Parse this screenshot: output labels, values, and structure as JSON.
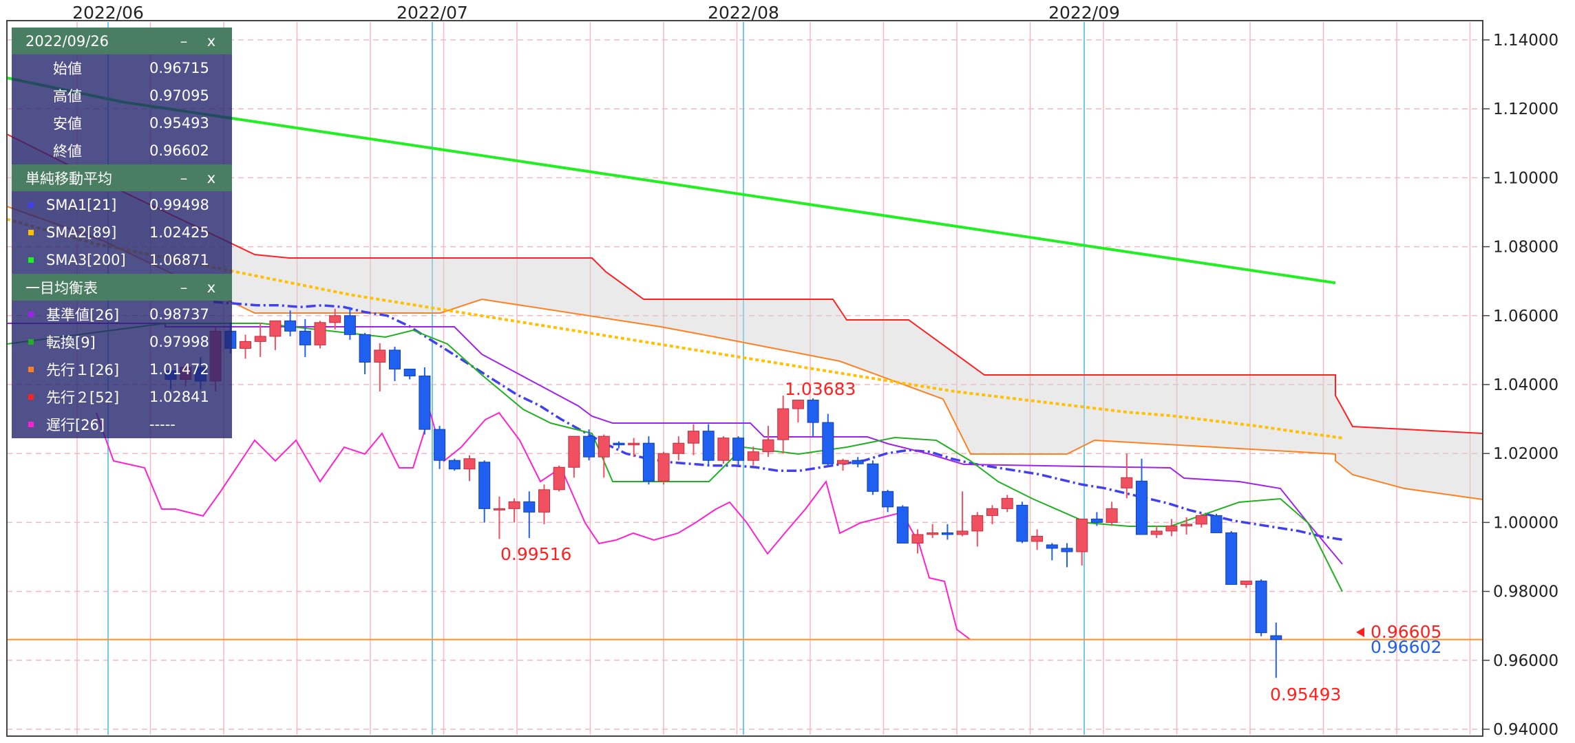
{
  "price_axis": {
    "ticks": [
      "1.14000",
      "1.12000",
      "1.10000",
      "1.08000",
      "1.06000",
      "1.04000",
      "1.02000",
      "1.00000",
      "0.98000",
      "0.96000",
      "0.94000"
    ],
    "tick_values": [
      1.14,
      1.12,
      1.1,
      1.08,
      1.06,
      1.04,
      1.02,
      1.0,
      0.98,
      0.96,
      0.94
    ]
  },
  "date_labels": [
    "2022/06",
    "2022/07",
    "2022/08",
    "2022/09"
  ],
  "annotations": {
    "high_label": "1.03683",
    "low_label_1": "0.99516",
    "low_label_2": "0.95493",
    "bid_price": "0.96605",
    "ask_price": "0.96602"
  },
  "colors": {
    "bull": "#f05060",
    "bear": "#2060f0",
    "sma1": "#4040f0",
    "sma2": "#ffc000",
    "sma3": "#20f020",
    "kijun": "#a020f0",
    "tenkan": "#20b020",
    "senkou1": "#ff8020",
    "senkou2": "#ff2020",
    "chikou": "#ff20d0",
    "label_red": "#ff2020",
    "label_blue": "#2060f0"
  },
  "ohlc_panel": {
    "date": "2022/09/26",
    "minimize": "–",
    "close": "x",
    "rows": [
      {
        "label": "始値",
        "value": "0.96715"
      },
      {
        "label": "高値",
        "value": "0.97095"
      },
      {
        "label": "安値",
        "value": "0.95493"
      },
      {
        "label": "終値",
        "value": "0.96602"
      }
    ]
  },
  "sma_panel": {
    "title": "単純移動平均",
    "minimize": "–",
    "close": "x",
    "rows": [
      {
        "label": "SMA1[21]",
        "value": "0.99498",
        "color": "#4040f0"
      },
      {
        "label": "SMA2[89]",
        "value": "1.02425",
        "color": "#ffc000"
      },
      {
        "label": "SMA3[200]",
        "value": "1.06871",
        "color": "#20f020"
      }
    ]
  },
  "ichimoku_panel": {
    "title": "一目均衡表",
    "minimize": "–",
    "close": "x",
    "rows": [
      {
        "label": "基準値[26]",
        "value": "0.98737",
        "color": "#a020f0"
      },
      {
        "label": "転換[9]",
        "value": "0.97998",
        "color": "#20b020"
      },
      {
        "label": "先行１[26]",
        "value": "1.01472",
        "color": "#ff8020"
      },
      {
        "label": "先行２[52]",
        "value": "1.02841",
        "color": "#ff2020"
      },
      {
        "label": "遅行[26]",
        "value": "-----",
        "color": "#ff20d0"
      }
    ]
  },
  "chart_data": {
    "type": "candlestick",
    "ylim": [
      0.94,
      1.145
    ],
    "dates": [
      "2022/06",
      "2022/07",
      "2022/08",
      "2022/09"
    ],
    "candles_ohlc": [
      [
        1.044,
        1.0455,
        1.0385,
        1.0415
      ],
      [
        1.0415,
        1.046,
        1.0395,
        1.045
      ],
      [
        1.045,
        1.048,
        1.0385,
        1.041
      ],
      [
        1.041,
        1.0565,
        1.038,
        1.0555
      ],
      [
        1.0555,
        1.058,
        1.049,
        1.0505
      ],
      [
        1.0505,
        1.0545,
        1.0475,
        1.0525
      ],
      [
        1.0525,
        1.058,
        1.048,
        1.054
      ],
      [
        1.054,
        1.0555,
        1.05,
        1.0585
      ],
      [
        1.0585,
        1.0615,
        1.054,
        1.0555
      ],
      [
        1.0555,
        1.059,
        1.048,
        1.0515
      ],
      [
        1.0515,
        1.0585,
        1.0505,
        1.058
      ],
      [
        1.058,
        1.062,
        1.056,
        1.06
      ],
      [
        1.06,
        1.0625,
        1.053,
        1.0545
      ],
      [
        1.0545,
        1.055,
        1.043,
        1.0465
      ],
      [
        1.0465,
        1.052,
        1.038,
        1.05
      ],
      [
        1.05,
        1.051,
        1.041,
        1.0445
      ],
      [
        1.0445,
        1.0445,
        1.0415,
        1.0425
      ],
      [
        1.0425,
        1.045,
        1.0255,
        1.027
      ],
      [
        1.027,
        1.028,
        1.0155,
        1.018
      ],
      [
        1.018,
        1.0185,
        1.015,
        1.0155
      ],
      [
        1.0155,
        1.0195,
        1.012,
        1.0185
      ],
      [
        1.0175,
        1.018,
        1.0,
        1.004
      ],
      [
        1.004,
        1.0075,
        0.9952,
        1.004
      ],
      [
        1.004,
        1.007,
        1.0,
        1.006
      ],
      [
        1.006,
        1.009,
        0.9955,
        1.003
      ],
      [
        1.003,
        1.011,
        0.9995,
        1.0095
      ],
      [
        1.0095,
        1.0165,
        1.009,
        1.016
      ],
      [
        1.016,
        1.0245,
        1.013,
        1.025
      ],
      [
        1.025,
        1.027,
        1.018,
        1.019
      ],
      [
        1.019,
        1.0255,
        1.013,
        1.025
      ],
      [
        1.023,
        1.0235,
        1.0215,
        1.0225
      ],
      [
        1.0225,
        1.0245,
        1.019,
        1.023
      ],
      [
        1.023,
        1.025,
        1.011,
        1.012
      ],
      [
        1.012,
        1.0205,
        1.011,
        1.02
      ],
      [
        1.02,
        1.025,
        1.018,
        1.023
      ],
      [
        1.023,
        1.0285,
        1.0195,
        1.0265
      ],
      [
        1.0265,
        1.0285,
        1.0165,
        1.018
      ],
      [
        1.018,
        1.025,
        1.017,
        1.0245
      ],
      [
        1.0245,
        1.025,
        1.0165,
        1.018
      ],
      [
        1.018,
        1.022,
        1.0165,
        1.0205
      ],
      [
        1.0205,
        1.028,
        1.019,
        1.024
      ],
      [
        1.024,
        1.0368,
        1.02,
        1.033
      ],
      [
        1.033,
        1.035,
        1.029,
        1.0355
      ],
      [
        1.0355,
        1.036,
        1.025,
        1.029
      ],
      [
        1.029,
        1.0315,
        1.0165,
        1.017
      ],
      [
        1.017,
        1.0185,
        1.015,
        1.018
      ],
      [
        1.018,
        1.019,
        1.016,
        1.017
      ],
      [
        1.017,
        1.018,
        1.008,
        1.009
      ],
      [
        1.009,
        1.0095,
        1.003,
        1.0045
      ],
      [
        1.0045,
        1.005,
        0.994,
        0.994
      ],
      [
        0.994,
        0.998,
        0.991,
        0.9965
      ],
      [
        0.9965,
        0.9995,
        0.9955,
        0.997
      ],
      [
        0.997,
        0.9995,
        0.995,
        0.9965
      ],
      [
        0.9965,
        1.009,
        0.996,
        0.9975
      ],
      [
        0.9975,
        1.003,
        0.993,
        1.002
      ],
      [
        1.002,
        1.005,
        0.9995,
        1.004
      ],
      [
        1.004,
        1.008,
        1.003,
        1.007
      ],
      [
        1.005,
        1.006,
        0.994,
        0.9945
      ],
      [
        0.9945,
        0.998,
        0.992,
        0.996
      ],
      [
        0.9935,
        0.994,
        0.989,
        0.9925
      ],
      [
        0.9925,
        0.994,
        0.987,
        0.9915
      ],
      [
        0.9915,
        1.001,
        0.9875,
        1.001
      ],
      [
        1.001,
        1.003,
        0.999,
        1.0
      ],
      [
        1.0,
        1.006,
        0.999,
        1.004
      ],
      [
        1.01,
        1.02,
        1.007,
        1.013
      ],
      [
        1.012,
        1.0185,
        0.9965,
        0.9965
      ],
      [
        0.9965,
        0.999,
        0.9955,
        0.9975
      ],
      [
        0.9975,
        1.001,
        0.996,
        0.999
      ],
      [
        0.999,
        1.0015,
        0.9965,
        0.9995
      ],
      [
        0.9995,
        1.0025,
        0.9985,
        1.002
      ],
      [
        1.002,
        1.0025,
        0.9975,
        0.997
      ],
      [
        0.997,
        0.9975,
        0.983,
        0.982
      ],
      [
        0.982,
        0.983,
        0.981,
        0.983
      ],
      [
        0.983,
        0.9835,
        0.967,
        0.968
      ],
      [
        0.96715,
        0.97095,
        0.95493,
        0.96602
      ]
    ],
    "sma1": [
      1.064,
      1.0635,
      1.063,
      1.063,
      1.0625,
      1.063,
      1.0625,
      1.061,
      1.06,
      1.057,
      1.053,
      1.049,
      1.045,
      1.041,
      1.037,
      1.034,
      1.03,
      1.0265,
      1.023,
      1.02,
      1.0185,
      1.0175,
      1.017,
      1.0165,
      1.0165,
      1.016,
      1.015,
      1.015,
      1.016,
      1.017,
      1.018,
      1.02,
      1.021,
      1.0205,
      1.0185,
      1.017,
      1.016,
      1.015,
      1.014,
      1.0125,
      1.011,
      1.01,
      1.0085,
      1.007,
      1.0055,
      1.0035,
      1.002,
      1.0005,
      0.9995,
      0.9985,
      0.9975,
      0.996,
      0.995
    ],
    "sma2": [
      1.088,
      1.0845,
      1.081,
      1.0785,
      1.076,
      1.0735,
      1.071,
      1.0685,
      1.066,
      1.064,
      1.062,
      1.06,
      1.058,
      1.056,
      1.054,
      1.052,
      1.05,
      1.048,
      1.046,
      1.044,
      1.042,
      1.04,
      1.038,
      1.0365,
      1.035,
      1.0335,
      1.032,
      1.031,
      1.0295,
      1.028,
      1.0262,
      1.0245
    ],
    "sma3": [
      1.129,
      1.1255,
      1.122,
      1.1195,
      1.117,
      1.1145,
      1.112,
      1.1095,
      1.107,
      1.1045,
      1.102,
      1.0995,
      1.097,
      1.0945,
      1.092,
      1.0895,
      1.087,
      1.0845,
      1.082,
      1.0795,
      1.077,
      1.0745,
      1.072,
      1.0695
    ]
  }
}
